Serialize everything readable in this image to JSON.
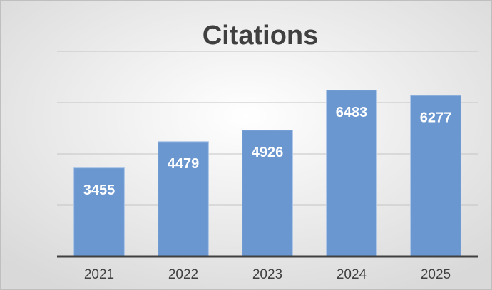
{
  "chart_data": {
    "type": "bar",
    "title": "Citations",
    "categories": [
      "2021",
      "2022",
      "2023",
      "2024",
      "2025"
    ],
    "values": [
      3455,
      4479,
      4926,
      6483,
      6277
    ],
    "color": "#6a97d0",
    "ylim": [
      0,
      8000
    ],
    "yticks": [
      2000,
      4000,
      6000,
      8000
    ],
    "grid": true
  }
}
